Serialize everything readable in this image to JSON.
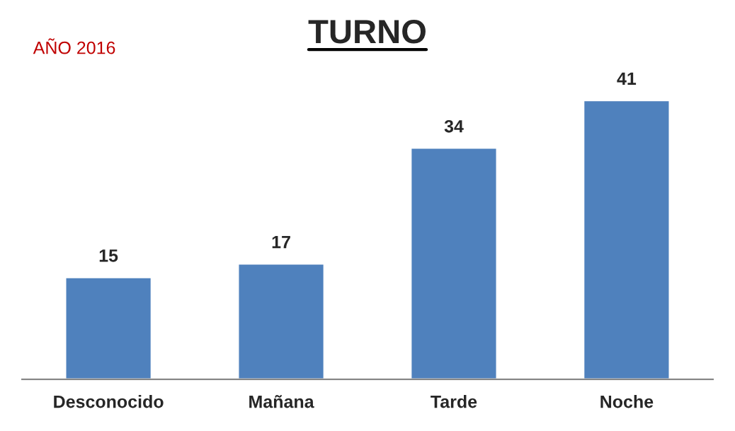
{
  "chart_data": {
    "type": "bar",
    "title": "TURNO",
    "annotations": [
      "AÑO 2016"
    ],
    "categories": [
      "Desconocido",
      "Mañana",
      "Tarde",
      "Noche"
    ],
    "values": [
      15,
      17,
      34,
      41
    ],
    "color": "#4f81bd",
    "data_labels": true,
    "grid": false,
    "legend": false
  }
}
